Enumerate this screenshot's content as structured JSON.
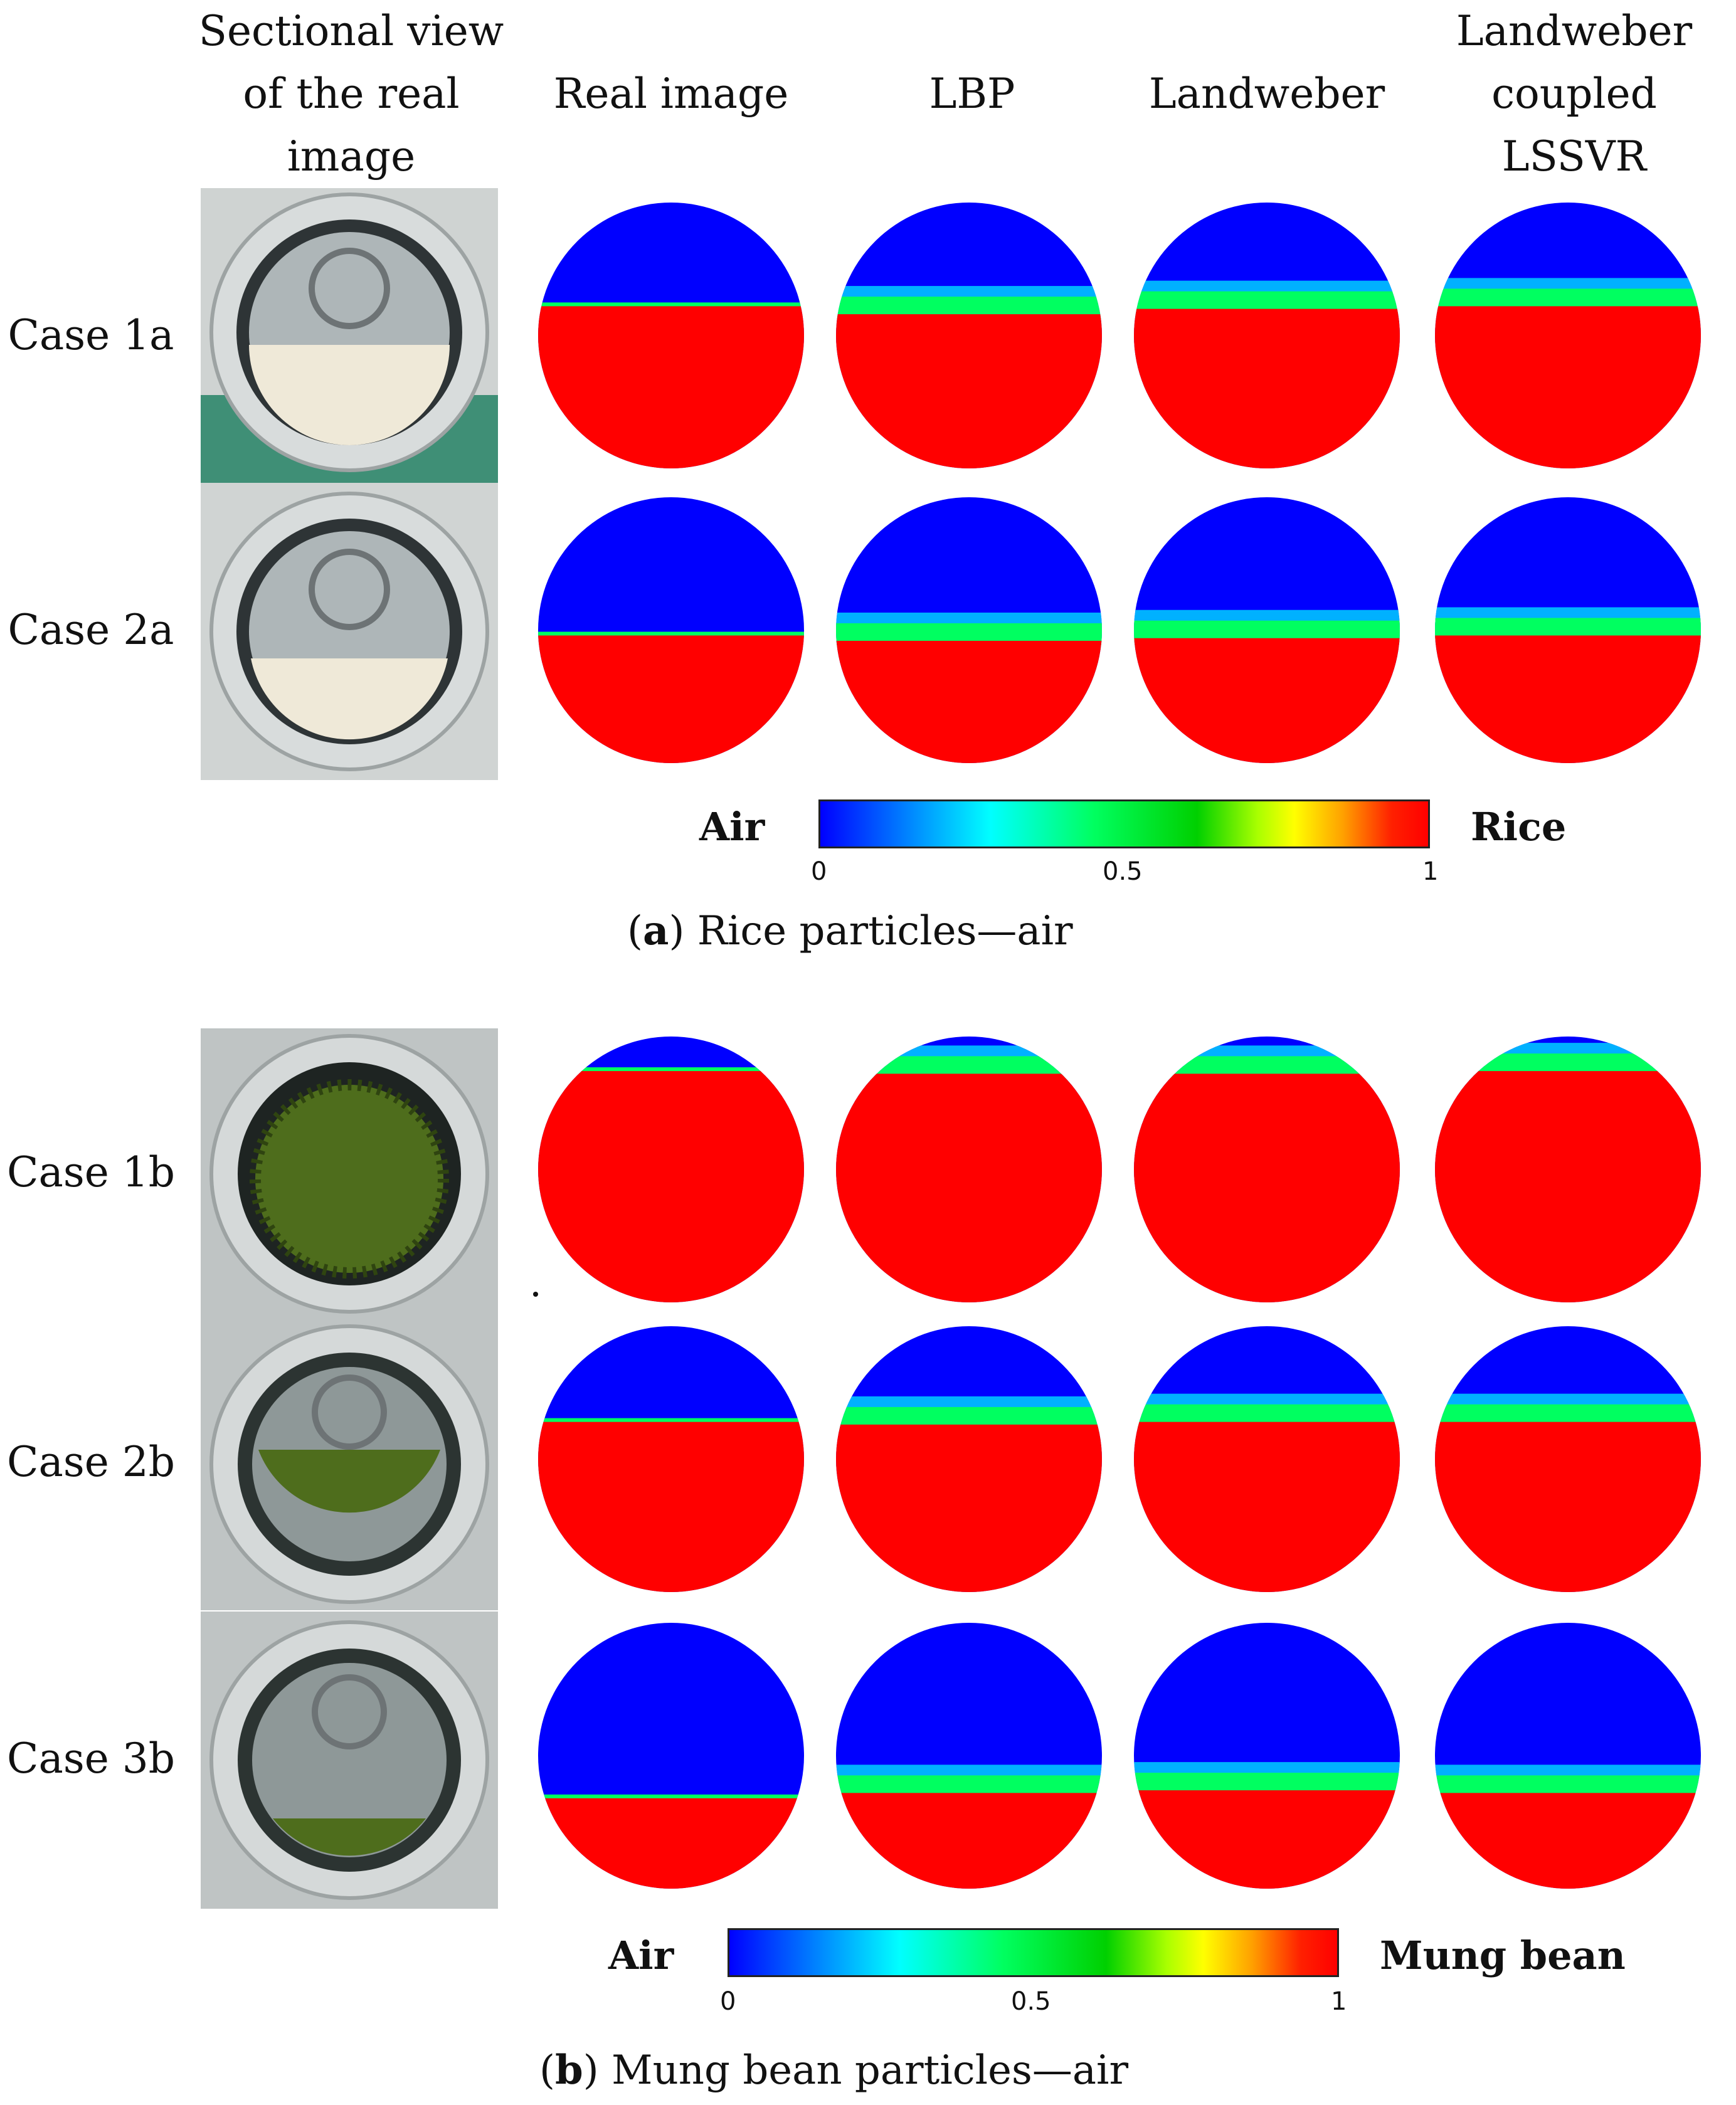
{
  "column_headers": [
    "Sectional view of the real image",
    "Real image",
    "LBP",
    "Landweber",
    "Landweber coupled LSSVR"
  ],
  "panel_a": {
    "rows": [
      {
        "label": "Case 1a",
        "photo": "photo of rice filled sensor pipe, case 1a",
        "interface": [
          0.39,
          0.42,
          0.4,
          0.39
        ]
      },
      {
        "label": "Case 2a",
        "photo": "photo of rice filled sensor pipe, case 2a",
        "interface": [
          0.52,
          0.54,
          0.53,
          0.52
        ]
      }
    ],
    "colorbar": {
      "left_label": "Air",
      "right_label": "Rice",
      "ticks": [
        "0",
        "0.5",
        "1"
      ],
      "min": 0,
      "max": 1
    },
    "caption": {
      "letter": "a",
      "prefix": "(",
      "suffix": ") Rice particles—air"
    }
  },
  "panel_b": {
    "rows": [
      {
        "label": "Case 1b",
        "interface": [
          0.13,
          0.14,
          0.14,
          0.13
        ]
      },
      {
        "label": "Case 2b",
        "interface": [
          0.36,
          0.37,
          0.36,
          0.36
        ]
      },
      {
        "label": "Case 3b",
        "interface": [
          0.66,
          0.64,
          0.63,
          0.64
        ]
      }
    ],
    "colorbar": {
      "left_label": "Air",
      "right_label": "Mung bean",
      "ticks": [
        "0",
        "0.5",
        "1"
      ],
      "min": 0,
      "max": 1
    },
    "caption": {
      "letter": "b",
      "prefix": "(",
      "suffix": ") Mung bean particles—air"
    }
  },
  "colors": {
    "air": "#0000ff",
    "particle": "#ff0000",
    "transition": "#00ff60",
    "edge": "#00d0ff"
  }
}
